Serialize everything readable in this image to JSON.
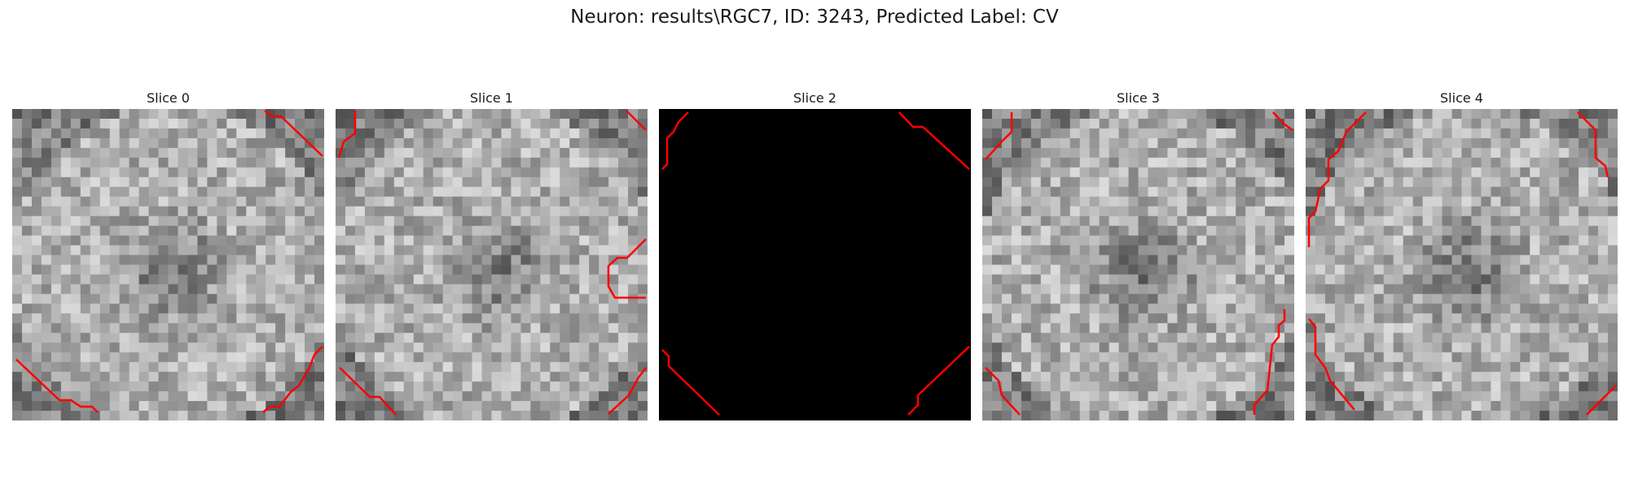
{
  "figure": {
    "title": "Neuron: results\\RGC7, ID: 3243, Predicted Label: CV"
  },
  "panels": [
    {
      "title": "Slice 0",
      "content": "grayscale"
    },
    {
      "title": "Slice 1",
      "content": "grayscale"
    },
    {
      "title": "Slice 2",
      "content": "black"
    },
    {
      "title": "Slice 3",
      "content": "grayscale"
    },
    {
      "title": "Slice 4",
      "content": "grayscale"
    }
  ],
  "colors": {
    "contour": "#ff0000",
    "background": "#ffffff",
    "empty_slice": "#000000"
  }
}
